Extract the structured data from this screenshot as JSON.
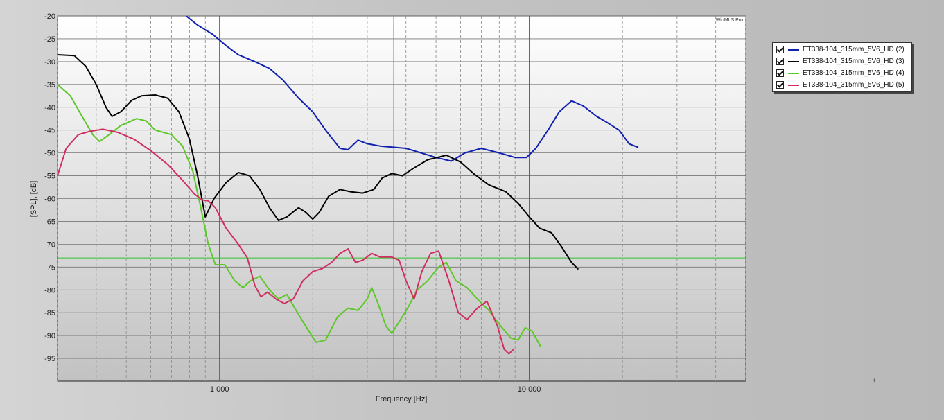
{
  "app": {
    "watermark": "WinMLS Pro"
  },
  "cursor_marker": "!",
  "legend": {
    "items": [
      {
        "label": "ET338-104_315mm_5V6_HD (2)",
        "color": "#1020b0",
        "checked": true
      },
      {
        "label": "ET338-104_315mm_5V6_HD (3)",
        "color": "#000000",
        "checked": true
      },
      {
        "label": "ET338-104_315mm_5V6_HD (4)",
        "color": "#5cc828",
        "checked": true
      },
      {
        "label": "ET338-104_315mm_5V6_HD (5)",
        "color": "#d02e5e",
        "checked": true
      }
    ]
  },
  "chart_data": {
    "type": "line",
    "xlabel": "Frequency [Hz]",
    "ylabel": "[SPL], [dB]",
    "x_scale": "log",
    "xlim": [
      300,
      50000
    ],
    "ylim": [
      -100,
      -20
    ],
    "x_ticks": [
      1000,
      10000
    ],
    "x_tick_labels": [
      "1 000",
      "10 000"
    ],
    "y_ticks": [
      -20,
      -25,
      -30,
      -35,
      -40,
      -45,
      -50,
      -55,
      -60,
      -65,
      -70,
      -75,
      -80,
      -85,
      -90,
      -95
    ],
    "y_tick_labels": [
      "-20",
      "-25",
      "-30",
      "-35",
      "-40",
      "-45",
      "-50",
      "-55",
      "-60",
      "-65",
      "-70",
      "-75",
      "-80",
      "-85",
      "-90",
      "-95"
    ],
    "grid": true,
    "cursor": {
      "x": 3650,
      "y": -73,
      "color": "#2cc22c"
    },
    "series": [
      {
        "name": "ET338-104_315mm_5V6_HD (2)",
        "color": "#1020b0",
        "points": [
          [
            780,
            -20
          ],
          [
            850,
            -22
          ],
          [
            950,
            -24
          ],
          [
            1050,
            -26.5
          ],
          [
            1150,
            -28.5
          ],
          [
            1300,
            -30
          ],
          [
            1450,
            -31.5
          ],
          [
            1600,
            -34
          ],
          [
            1800,
            -38
          ],
          [
            2000,
            -41
          ],
          [
            2200,
            -45
          ],
          [
            2450,
            -49
          ],
          [
            2600,
            -49.3
          ],
          [
            2800,
            -47.2
          ],
          [
            3000,
            -48
          ],
          [
            3300,
            -48.5
          ],
          [
            4000,
            -49
          ],
          [
            5000,
            -51
          ],
          [
            5600,
            -51.8
          ],
          [
            6200,
            -50
          ],
          [
            7000,
            -49
          ],
          [
            8000,
            -50
          ],
          [
            9000,
            -51
          ],
          [
            9800,
            -51
          ],
          [
            10500,
            -49
          ],
          [
            11500,
            -45
          ],
          [
            12500,
            -41
          ],
          [
            13700,
            -38.6
          ],
          [
            15000,
            -39.8
          ],
          [
            16500,
            -42
          ],
          [
            18000,
            -43.5
          ],
          [
            19500,
            -45
          ],
          [
            21000,
            -48
          ],
          [
            22500,
            -48.8
          ]
        ]
      },
      {
        "name": "ET338-104_315mm_5V6_HD (3)",
        "color": "#000000",
        "points": [
          [
            300,
            -28.5
          ],
          [
            340,
            -28.7
          ],
          [
            370,
            -31
          ],
          [
            400,
            -35
          ],
          [
            430,
            -40
          ],
          [
            450,
            -42
          ],
          [
            480,
            -41
          ],
          [
            520,
            -38.5
          ],
          [
            560,
            -37.5
          ],
          [
            620,
            -37.3
          ],
          [
            680,
            -38
          ],
          [
            740,
            -41
          ],
          [
            800,
            -47
          ],
          [
            850,
            -55
          ],
          [
            900,
            -64
          ],
          [
            960,
            -60
          ],
          [
            1050,
            -56.5
          ],
          [
            1150,
            -54.3
          ],
          [
            1250,
            -55
          ],
          [
            1350,
            -58
          ],
          [
            1450,
            -62
          ],
          [
            1550,
            -64.8
          ],
          [
            1650,
            -64
          ],
          [
            1800,
            -62
          ],
          [
            1900,
            -63
          ],
          [
            2000,
            -64.5
          ],
          [
            2100,
            -63
          ],
          [
            2250,
            -59.5
          ],
          [
            2450,
            -58
          ],
          [
            2650,
            -58.5
          ],
          [
            2900,
            -58.8
          ],
          [
            3150,
            -58
          ],
          [
            3350,
            -55.5
          ],
          [
            3600,
            -54.5
          ],
          [
            3900,
            -55
          ],
          [
            4200,
            -53.5
          ],
          [
            4700,
            -51.5
          ],
          [
            5400,
            -50.5
          ],
          [
            6000,
            -52
          ],
          [
            6600,
            -54.5
          ],
          [
            7400,
            -57
          ],
          [
            8400,
            -58.5
          ],
          [
            9200,
            -61
          ],
          [
            10000,
            -64
          ],
          [
            10800,
            -66.5
          ],
          [
            11800,
            -67.5
          ],
          [
            12700,
            -70.5
          ],
          [
            13700,
            -74
          ],
          [
            14400,
            -75.5
          ]
        ]
      },
      {
        "name": "ET338-104_315mm_5V6_HD (4)",
        "color": "#5cc828",
        "points": [
          [
            300,
            -35
          ],
          [
            330,
            -37.5
          ],
          [
            360,
            -42
          ],
          [
            390,
            -46
          ],
          [
            410,
            -47.5
          ],
          [
            440,
            -46
          ],
          [
            480,
            -44
          ],
          [
            540,
            -42.5
          ],
          [
            580,
            -43
          ],
          [
            620,
            -45
          ],
          [
            700,
            -46
          ],
          [
            760,
            -48.5
          ],
          [
            820,
            -54
          ],
          [
            870,
            -62
          ],
          [
            920,
            -70
          ],
          [
            970,
            -74.5
          ],
          [
            1040,
            -74.5
          ],
          [
            1120,
            -78
          ],
          [
            1190,
            -79.5
          ],
          [
            1260,
            -78
          ],
          [
            1350,
            -77
          ],
          [
            1450,
            -80
          ],
          [
            1550,
            -82
          ],
          [
            1650,
            -81
          ],
          [
            1750,
            -84
          ],
          [
            1900,
            -88
          ],
          [
            2050,
            -91.5
          ],
          [
            2200,
            -91
          ],
          [
            2400,
            -86
          ],
          [
            2600,
            -84
          ],
          [
            2800,
            -84.5
          ],
          [
            3000,
            -82
          ],
          [
            3100,
            -79.5
          ],
          [
            3250,
            -83
          ],
          [
            3450,
            -88
          ],
          [
            3600,
            -89.5
          ],
          [
            3800,
            -87
          ],
          [
            4050,
            -84
          ],
          [
            4350,
            -80
          ],
          [
            4700,
            -78
          ],
          [
            5100,
            -75
          ],
          [
            5400,
            -74
          ],
          [
            5800,
            -78
          ],
          [
            6300,
            -79.5
          ],
          [
            6800,
            -82
          ],
          [
            7400,
            -84.5
          ],
          [
            8000,
            -87.5
          ],
          [
            8700,
            -90.5
          ],
          [
            9200,
            -91
          ],
          [
            9700,
            -88.3
          ],
          [
            10200,
            -89
          ],
          [
            10600,
            -91
          ],
          [
            10900,
            -92.5
          ]
        ]
      },
      {
        "name": "ET338-104_315mm_5V6_HD (5)",
        "color": "#d02e5e",
        "points": [
          [
            300,
            -55
          ],
          [
            320,
            -49
          ],
          [
            350,
            -46
          ],
          [
            380,
            -45.3
          ],
          [
            420,
            -44.8
          ],
          [
            470,
            -45.5
          ],
          [
            530,
            -47
          ],
          [
            600,
            -49.5
          ],
          [
            680,
            -52.5
          ],
          [
            760,
            -56
          ],
          [
            830,
            -59
          ],
          [
            880,
            -60.3
          ],
          [
            920,
            -60.5
          ],
          [
            970,
            -62
          ],
          [
            1050,
            -66.5
          ],
          [
            1150,
            -70
          ],
          [
            1230,
            -73
          ],
          [
            1300,
            -79
          ],
          [
            1360,
            -81.5
          ],
          [
            1430,
            -80.5
          ],
          [
            1520,
            -82
          ],
          [
            1620,
            -83
          ],
          [
            1730,
            -82
          ],
          [
            1860,
            -78
          ],
          [
            2000,
            -76
          ],
          [
            2150,
            -75.3
          ],
          [
            2300,
            -74
          ],
          [
            2450,
            -72
          ],
          [
            2600,
            -71
          ],
          [
            2750,
            -74
          ],
          [
            2900,
            -73.5
          ],
          [
            3100,
            -72
          ],
          [
            3300,
            -72.8
          ],
          [
            3600,
            -72.8
          ],
          [
            3800,
            -73.5
          ],
          [
            4000,
            -78
          ],
          [
            4250,
            -82
          ],
          [
            4500,
            -76
          ],
          [
            4800,
            -72
          ],
          [
            5100,
            -71.5
          ],
          [
            5500,
            -78
          ],
          [
            5900,
            -85
          ],
          [
            6300,
            -86.5
          ],
          [
            6800,
            -84
          ],
          [
            7300,
            -82.5
          ],
          [
            7900,
            -88
          ],
          [
            8300,
            -93
          ],
          [
            8600,
            -94
          ],
          [
            8900,
            -93
          ]
        ]
      }
    ]
  }
}
